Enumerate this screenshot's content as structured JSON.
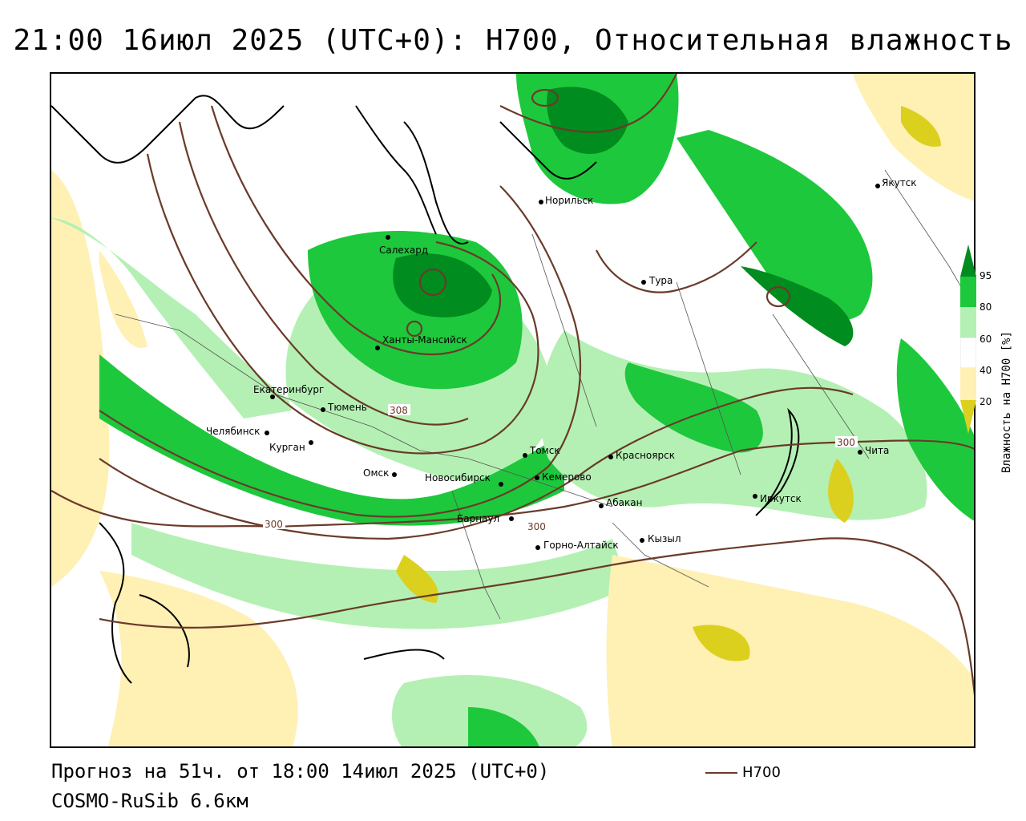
{
  "title": "21:00 16июл 2025 (UTC+0): H700, Относительная влажность",
  "footer": {
    "forecast": "Прогноз на 51ч. от 18:00 14июл 2025 (UTC+0)",
    "model": "COSMO-RuSib 6.6км"
  },
  "legend": {
    "line_label": "H700",
    "line_color": "#6b3a2a"
  },
  "colorbar": {
    "title": "Влажность на H700 [%]",
    "ticks": [
      "95",
      "80",
      "60",
      "40",
      "20"
    ],
    "colors": [
      "#008c1e",
      "#1ec83c",
      "#b4f0b4",
      "#ffffff",
      "#fff0b4",
      "#dcd01e"
    ]
  },
  "contour_labels": [
    "300",
    "300",
    "300",
    "308"
  ],
  "cities": [
    "Якутск",
    "Норильск",
    "Салехард",
    "Тура",
    "Ханты-Мансийск",
    "Екатеринбург",
    "Тюмень",
    "Челябинск",
    "Курган",
    "Омск",
    "Томск",
    "Красноярск",
    "Чита",
    "Кемерово",
    "Новосибирск",
    "Абакан",
    "Иркутск",
    "Барнаул",
    "Кызыл",
    "Горно-Алтайск"
  ]
}
